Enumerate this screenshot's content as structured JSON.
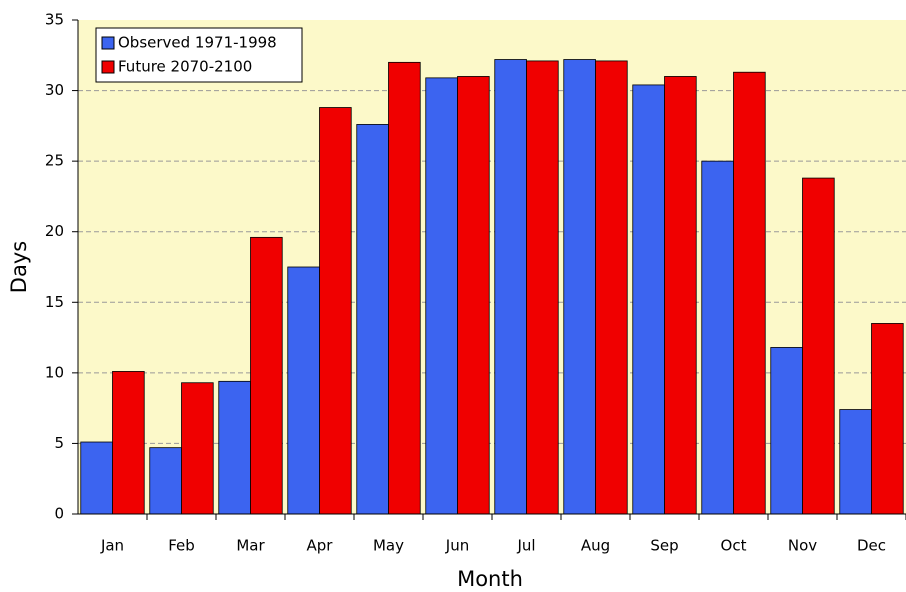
{
  "chart_data": {
    "type": "bar",
    "x_label": "Month",
    "y_label": "Days",
    "categories": [
      "Jan",
      "Feb",
      "Mar",
      "Apr",
      "May",
      "Jun",
      "Jul",
      "Aug",
      "Sep",
      "Oct",
      "Nov",
      "Dec"
    ],
    "series": [
      {
        "name": "Observed 1971-1998",
        "color": "#3c64f0",
        "values": [
          5.1,
          4.7,
          9.4,
          17.5,
          27.6,
          30.9,
          32.2,
          32.2,
          30.4,
          25.0,
          11.8,
          7.4
        ]
      },
      {
        "name": "Future 2070-2100",
        "color": "#f00000",
        "values": [
          10.1,
          9.3,
          19.6,
          28.8,
          32.0,
          31.0,
          32.1,
          32.1,
          31.0,
          31.3,
          23.8,
          13.5
        ]
      }
    ],
    "ylim": [
      0,
      35
    ],
    "yticks": [
      0,
      5,
      10,
      15,
      20,
      25,
      30,
      35
    ],
    "grid": true,
    "legend": "top-left"
  }
}
